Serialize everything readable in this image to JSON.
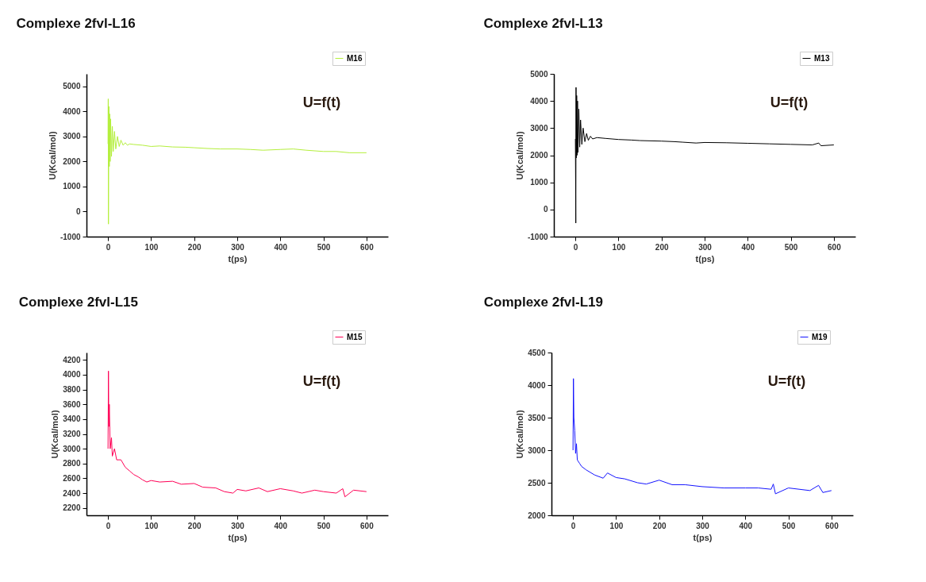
{
  "chart_data": [
    {
      "type": "line",
      "title": "Complexe 2fvl-L16",
      "xlabel": "t(ps)",
      "ylabel": "U(Kcal/mol)",
      "annotations": [
        "U=f(t)"
      ],
      "xlim": [
        -50,
        650
      ],
      "xticks": [
        0,
        100,
        200,
        300,
        400,
        500,
        600
      ],
      "ylim": [
        -1000,
        5500
      ],
      "yticks": [
        -1000,
        0,
        1000,
        2000,
        3000,
        4000,
        5000
      ],
      "grid": false,
      "legend": "top right",
      "marker": "none",
      "line_style": "solid",
      "series": [
        {
          "name": "M16",
          "color": "#b4ef3c",
          "x": [
            0,
            0.5,
            1,
            2,
            3,
            4,
            5,
            6,
            8,
            10,
            12,
            15,
            18,
            22,
            26,
            30,
            35,
            40,
            45,
            50,
            60,
            80,
            100,
            120,
            150,
            180,
            200,
            230,
            260,
            300,
            330,
            360,
            400,
            430,
            460,
            500,
            530,
            560,
            600
          ],
          "values": [
            2700,
            4500,
            -500,
            4200,
            1800,
            3900,
            2000,
            3700,
            2200,
            3400,
            2400,
            3200,
            2500,
            3000,
            2600,
            2850,
            2650,
            2750,
            2650,
            2700,
            2680,
            2650,
            2600,
            2620,
            2580,
            2570,
            2550,
            2520,
            2500,
            2500,
            2480,
            2450,
            2480,
            2500,
            2450,
            2400,
            2400,
            2350,
            2350
          ]
        }
      ]
    },
    {
      "type": "line",
      "title": "Complexe 2fvl-L13",
      "xlabel": "t(ps)",
      "ylabel": "U(Kcal/mol)",
      "annotations": [
        "U=f(t)"
      ],
      "xlim": [
        -50,
        650
      ],
      "xticks": [
        0,
        100,
        200,
        300,
        400,
        500,
        600
      ],
      "ylim": [
        -1000,
        5000
      ],
      "yticks": [
        -1000,
        0,
        1000,
        2000,
        3000,
        4000,
        5000
      ],
      "grid": false,
      "legend": "top right",
      "marker": "none",
      "line_style": "solid",
      "series": [
        {
          "name": "M13",
          "color": "#000000",
          "x": [
            0,
            1,
            1.5,
            2,
            3,
            4,
            5,
            6,
            8,
            10,
            12,
            15,
            18,
            22,
            26,
            30,
            35,
            40,
            50,
            70,
            100,
            130,
            150,
            200,
            230,
            250,
            280,
            300,
            350,
            400,
            450,
            500,
            550,
            565,
            570,
            600
          ],
          "values": [
            2600,
            -500,
            4500,
            1900,
            4200,
            2000,
            4000,
            2100,
            3700,
            2300,
            3300,
            2400,
            3000,
            2500,
            2800,
            2550,
            2700,
            2600,
            2650,
            2620,
            2580,
            2560,
            2540,
            2520,
            2500,
            2480,
            2450,
            2470,
            2460,
            2440,
            2420,
            2400,
            2380,
            2450,
            2350,
            2380
          ]
        }
      ]
    },
    {
      "type": "line",
      "title": "Complexe 2fvl-L15",
      "xlabel": "t(ps)",
      "ylabel": "U(Kcal/mol)",
      "annotations": [
        "U=f(t)"
      ],
      "xlim": [
        -50,
        650
      ],
      "xticks": [
        0,
        100,
        200,
        300,
        400,
        500,
        600
      ],
      "ylim": [
        2100,
        4300
      ],
      "yticks": [
        2200,
        2400,
        2600,
        2800,
        3000,
        3200,
        3400,
        3600,
        3800,
        4000,
        4200
      ],
      "grid": false,
      "legend": "top right",
      "marker": "none",
      "line_style": "solid",
      "series": [
        {
          "name": "M15",
          "color": "#ff0055",
          "x": [
            0,
            1,
            2,
            3,
            5,
            8,
            10,
            15,
            20,
            30,
            40,
            50,
            60,
            70,
            80,
            90,
            100,
            120,
            150,
            170,
            200,
            220,
            250,
            270,
            290,
            300,
            320,
            350,
            370,
            400,
            430,
            450,
            480,
            500,
            530,
            545,
            550,
            570,
            600
          ],
          "values": [
            3000,
            4050,
            3300,
            3600,
            3000,
            3150,
            2900,
            3000,
            2850,
            2850,
            2750,
            2700,
            2650,
            2620,
            2580,
            2550,
            2570,
            2550,
            2560,
            2520,
            2530,
            2480,
            2470,
            2420,
            2400,
            2450,
            2430,
            2470,
            2420,
            2460,
            2430,
            2400,
            2440,
            2420,
            2400,
            2460,
            2350,
            2440,
            2420
          ]
        }
      ]
    },
    {
      "type": "line",
      "title": "Complexe 2fvl-L19",
      "xlabel": "t(ps)",
      "ylabel": "U(Kcal/mol)",
      "annotations": [
        "U=f(t)"
      ],
      "xlim": [
        -50,
        650
      ],
      "xticks": [
        0,
        100,
        200,
        300,
        400,
        500,
        600
      ],
      "ylim": [
        2000,
        4500
      ],
      "yticks": [
        2000,
        2500,
        3000,
        3500,
        4000,
        4500
      ],
      "grid": false,
      "legend": "top right",
      "marker": "none",
      "line_style": "solid",
      "series": [
        {
          "name": "M19",
          "color": "#1414ff",
          "x": [
            0,
            1,
            2,
            4,
            6,
            8,
            10,
            15,
            20,
            30,
            50,
            70,
            80,
            100,
            120,
            150,
            170,
            200,
            230,
            260,
            300,
            350,
            400,
            430,
            460,
            465,
            470,
            500,
            550,
            570,
            580,
            600
          ],
          "values": [
            3000,
            4100,
            3500,
            3300,
            2950,
            3100,
            2850,
            2800,
            2750,
            2700,
            2620,
            2570,
            2650,
            2580,
            2560,
            2500,
            2480,
            2540,
            2470,
            2470,
            2440,
            2420,
            2420,
            2420,
            2400,
            2480,
            2330,
            2420,
            2380,
            2460,
            2350,
            2380
          ]
        }
      ]
    }
  ]
}
